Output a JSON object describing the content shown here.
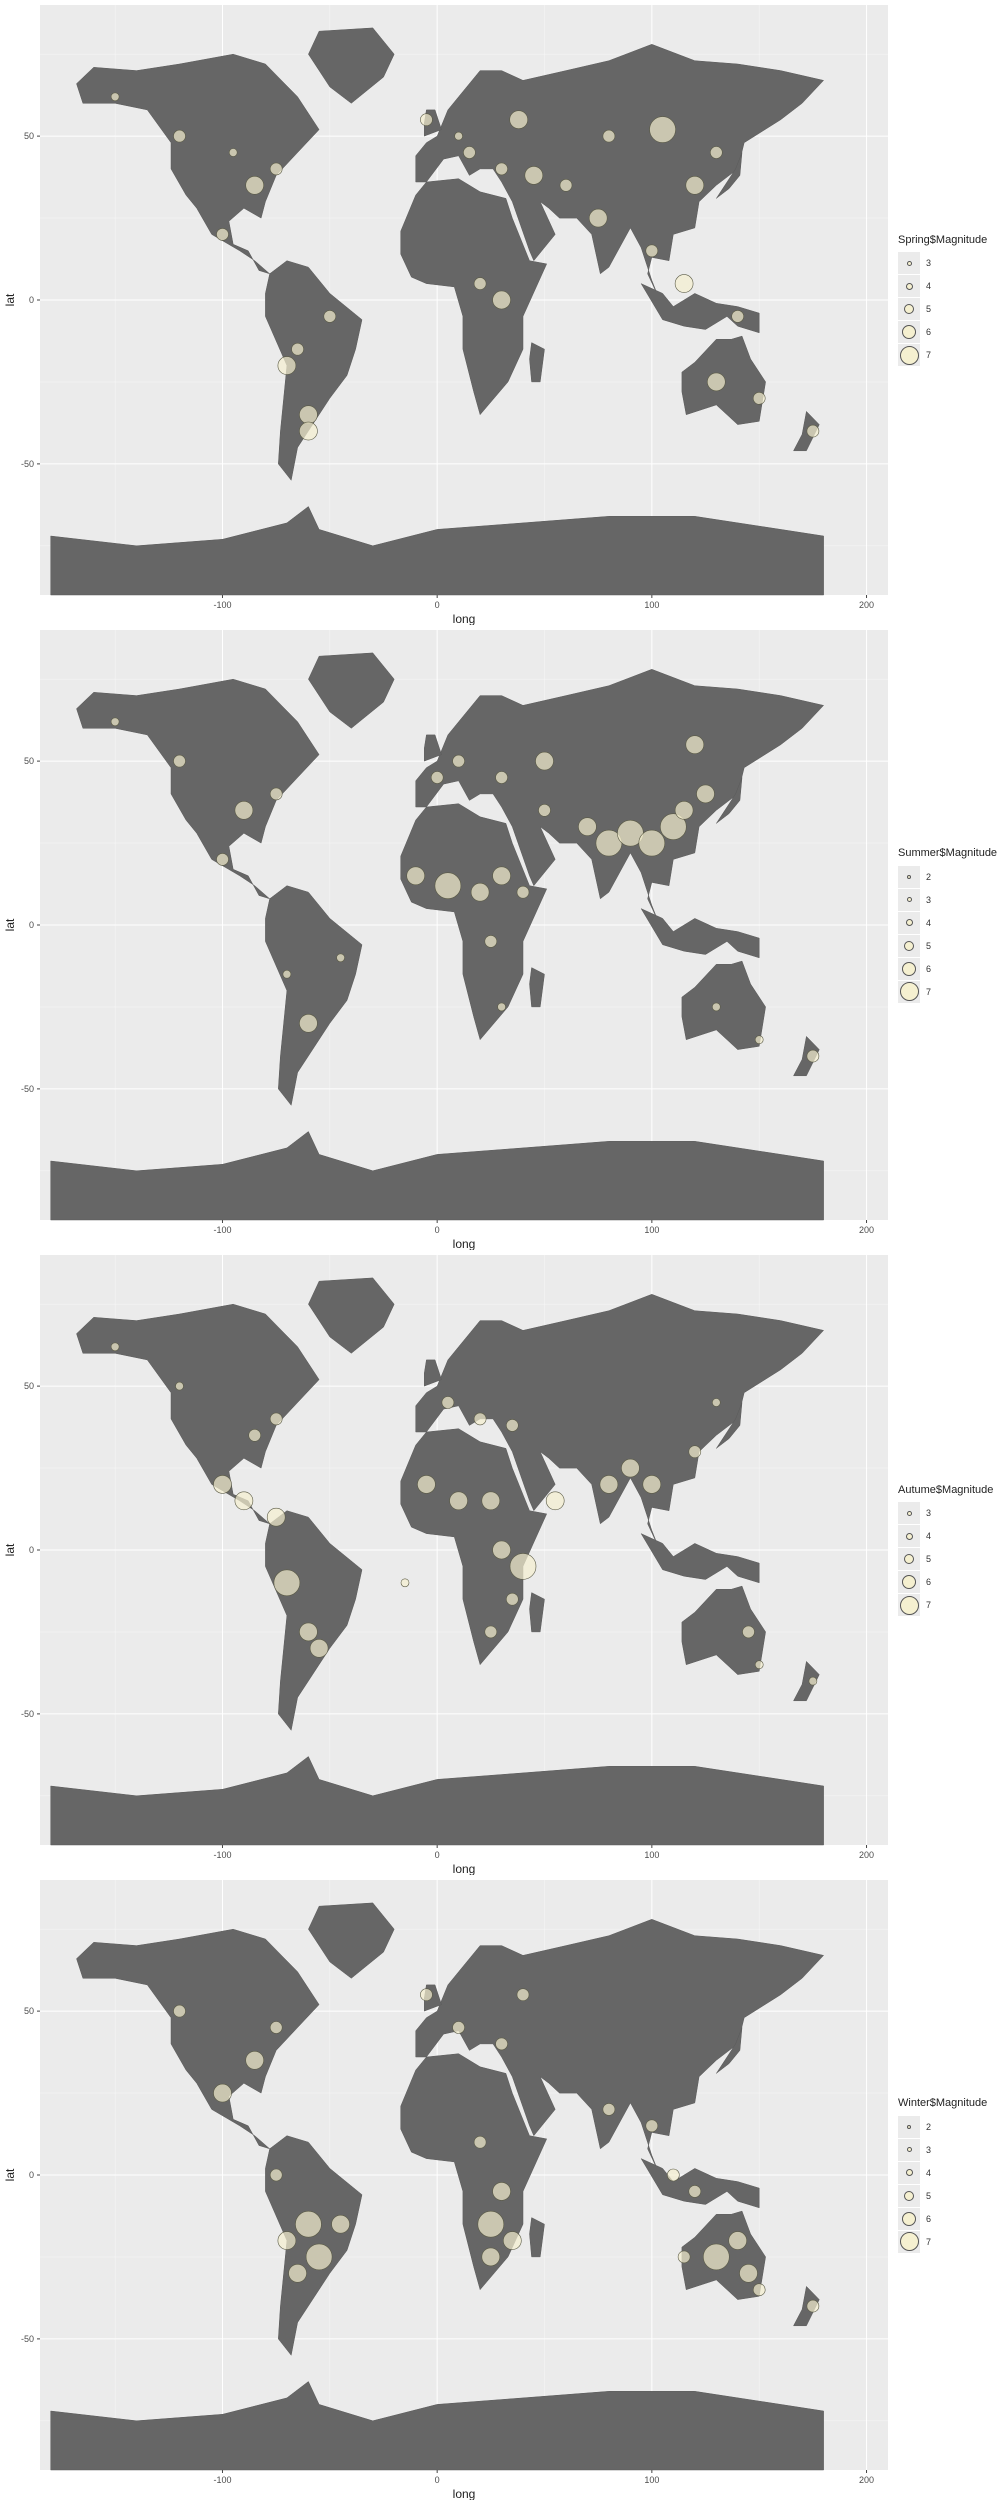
{
  "panels": [
    {
      "legend_title": "Spring$Magnitude",
      "levels": [
        "3",
        "4",
        "5",
        "6",
        "7"
      ],
      "bubbles": [
        [
          -75,
          40,
          5
        ],
        [
          -85,
          35,
          6
        ],
        [
          -100,
          20,
          5
        ],
        [
          -70,
          -20,
          6
        ],
        [
          -60,
          -35,
          6
        ],
        [
          -65,
          -15,
          5
        ],
        [
          -50,
          -5,
          5
        ],
        [
          -120,
          50,
          5
        ],
        [
          -95,
          45,
          4
        ],
        [
          -150,
          62,
          4
        ],
        [
          15,
          45,
          5
        ],
        [
          10,
          50,
          4
        ],
        [
          30,
          40,
          5
        ],
        [
          45,
          38,
          6
        ],
        [
          60,
          35,
          5
        ],
        [
          20,
          5,
          5
        ],
        [
          30,
          0,
          6
        ],
        [
          80,
          50,
          5
        ],
        [
          105,
          52,
          7
        ],
        [
          120,
          35,
          6
        ],
        [
          75,
          25,
          6
        ],
        [
          130,
          45,
          5
        ],
        [
          100,
          15,
          5
        ],
        [
          115,
          5,
          6
        ],
        [
          140,
          -5,
          5
        ],
        [
          130,
          -25,
          6
        ],
        [
          150,
          -30,
          5
        ],
        [
          -60,
          -40,
          6
        ],
        [
          175,
          -40,
          5
        ],
        [
          -5,
          55,
          5
        ],
        [
          38,
          55,
          6
        ]
      ]
    },
    {
      "legend_title": "Summer$Magnitude",
      "levels": [
        "2",
        "3",
        "4",
        "5",
        "6",
        "7"
      ],
      "bubbles": [
        [
          -75,
          40,
          5
        ],
        [
          -90,
          35,
          6
        ],
        [
          -100,
          20,
          5
        ],
        [
          -120,
          50,
          5
        ],
        [
          -150,
          62,
          4
        ],
        [
          -60,
          -30,
          6
        ],
        [
          -70,
          -15,
          4
        ],
        [
          -45,
          -10,
          4
        ],
        [
          -10,
          15,
          6
        ],
        [
          5,
          12,
          7
        ],
        [
          20,
          10,
          6
        ],
        [
          30,
          15,
          6
        ],
        [
          40,
          10,
          5
        ],
        [
          25,
          -5,
          5
        ],
        [
          30,
          -25,
          4
        ],
        [
          10,
          50,
          5
        ],
        [
          30,
          45,
          5
        ],
        [
          50,
          35,
          5
        ],
        [
          70,
          30,
          6
        ],
        [
          80,
          25,
          7
        ],
        [
          90,
          28,
          7
        ],
        [
          100,
          25,
          7
        ],
        [
          110,
          30,
          7
        ],
        [
          115,
          35,
          6
        ],
        [
          125,
          40,
          6
        ],
        [
          120,
          55,
          6
        ],
        [
          130,
          -25,
          4
        ],
        [
          150,
          -35,
          4
        ],
        [
          175,
          -40,
          5
        ],
        [
          50,
          50,
          6
        ],
        [
          0,
          45,
          5
        ]
      ]
    },
    {
      "legend_title": "Autume$Magnitude",
      "levels": [
        "3",
        "4",
        "5",
        "6",
        "7"
      ],
      "bubbles": [
        [
          -75,
          40,
          5
        ],
        [
          -85,
          35,
          5
        ],
        [
          -100,
          20,
          6
        ],
        [
          -90,
          15,
          6
        ],
        [
          -75,
          10,
          6
        ],
        [
          -70,
          -10,
          7
        ],
        [
          -60,
          -25,
          6
        ],
        [
          -55,
          -30,
          6
        ],
        [
          -120,
          50,
          4
        ],
        [
          -150,
          62,
          4
        ],
        [
          5,
          45,
          5
        ],
        [
          20,
          40,
          5
        ],
        [
          35,
          38,
          5
        ],
        [
          -5,
          20,
          6
        ],
        [
          10,
          15,
          6
        ],
        [
          25,
          15,
          6
        ],
        [
          30,
          0,
          6
        ],
        [
          40,
          -5,
          7
        ],
        [
          35,
          -15,
          5
        ],
        [
          25,
          -25,
          5
        ],
        [
          80,
          20,
          6
        ],
        [
          90,
          25,
          6
        ],
        [
          100,
          20,
          6
        ],
        [
          120,
          30,
          5
        ],
        [
          130,
          45,
          4
        ],
        [
          145,
          -25,
          5
        ],
        [
          150,
          -35,
          4
        ],
        [
          175,
          -40,
          4
        ],
        [
          55,
          15,
          6
        ],
        [
          -15,
          -10,
          4
        ]
      ]
    },
    {
      "legend_title": "Winter$Magnitude",
      "levels": [
        "2",
        "3",
        "4",
        "5",
        "6",
        "7"
      ],
      "bubbles": [
        [
          -75,
          45,
          5
        ],
        [
          -85,
          35,
          6
        ],
        [
          -100,
          25,
          6
        ],
        [
          -120,
          50,
          5
        ],
        [
          -60,
          -15,
          7
        ],
        [
          -55,
          -25,
          7
        ],
        [
          -65,
          -30,
          6
        ],
        [
          -70,
          -20,
          6
        ],
        [
          -45,
          -15,
          6
        ],
        [
          -75,
          0,
          5
        ],
        [
          10,
          45,
          5
        ],
        [
          30,
          40,
          5
        ],
        [
          20,
          10,
          5
        ],
        [
          30,
          -5,
          6
        ],
        [
          25,
          -15,
          7
        ],
        [
          25,
          -25,
          6
        ],
        [
          35,
          -20,
          6
        ],
        [
          80,
          20,
          5
        ],
        [
          100,
          15,
          5
        ],
        [
          110,
          0,
          5
        ],
        [
          120,
          -5,
          5
        ],
        [
          130,
          -25,
          7
        ],
        [
          140,
          -20,
          6
        ],
        [
          145,
          -30,
          6
        ],
        [
          150,
          -35,
          5
        ],
        [
          115,
          -25,
          5
        ],
        [
          175,
          -40,
          5
        ],
        [
          -5,
          55,
          5
        ],
        [
          40,
          55,
          5
        ]
      ]
    }
  ],
  "axes": {
    "x_title": "long",
    "y_title": "lat",
    "x_ticks": [
      "-100",
      "0",
      "100",
      "200"
    ],
    "y_ticks": [
      "50",
      "0",
      "-50"
    ],
    "xlim": [
      -185,
      210
    ],
    "ylim": [
      -90,
      90
    ]
  },
  "colors": {
    "panel_bg": "#ebebeb",
    "grid": "#ffffff",
    "land": "#666666",
    "bubble_fill": "#f5f0d0",
    "bubble_stroke": "#5a5a45"
  }
}
